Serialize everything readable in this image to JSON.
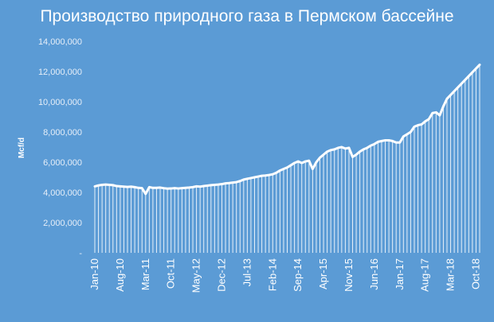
{
  "chart_data": {
    "type": "area",
    "title": "Производство природного газа в Пермском бассейне",
    "xlabel": "",
    "ylabel": "Mcf/d",
    "ylim": [
      0,
      14000000
    ],
    "yticks": [
      {
        "value": 0,
        "label": "-"
      },
      {
        "value": 2000000,
        "label": "2,000,000"
      },
      {
        "value": 4000000,
        "label": "4,000,000"
      },
      {
        "value": 6000000,
        "label": "6,000,000"
      },
      {
        "value": 8000000,
        "label": "8,000,000"
      },
      {
        "value": 10000000,
        "label": "10,000,000"
      },
      {
        "value": 12000000,
        "label": "12,000,000"
      },
      {
        "value": 14000000,
        "label": "14,000,000"
      }
    ],
    "xticks": [
      {
        "index": 0,
        "label": "Jan-10"
      },
      {
        "index": 7,
        "label": "Aug-10"
      },
      {
        "index": 14,
        "label": "Mar-11"
      },
      {
        "index": 21,
        "label": "Oct-11"
      },
      {
        "index": 28,
        "label": "May-12"
      },
      {
        "index": 35,
        "label": "Dec-12"
      },
      {
        "index": 42,
        "label": "Jul-13"
      },
      {
        "index": 49,
        "label": "Feb-14"
      },
      {
        "index": 56,
        "label": "Sep-14"
      },
      {
        "index": 63,
        "label": "Apr-15"
      },
      {
        "index": 70,
        "label": "Nov-15"
      },
      {
        "index": 77,
        "label": "Jun-16"
      },
      {
        "index": 84,
        "label": "Jan-17"
      },
      {
        "index": 91,
        "label": "Aug-17"
      },
      {
        "index": 98,
        "label": "Mar-18"
      },
      {
        "index": 105,
        "label": "Oct-18"
      }
    ],
    "series": [
      {
        "values": [
          4400000,
          4460000,
          4500000,
          4520000,
          4500000,
          4480000,
          4420000,
          4400000,
          4380000,
          4360000,
          4380000,
          4350000,
          4300000,
          4280000,
          3900000,
          4350000,
          4300000,
          4300000,
          4320000,
          4280000,
          4250000,
          4260000,
          4280000,
          4260000,
          4280000,
          4300000,
          4320000,
          4350000,
          4400000,
          4380000,
          4420000,
          4450000,
          4480000,
          4500000,
          4520000,
          4550000,
          4600000,
          4620000,
          4650000,
          4680000,
          4750000,
          4850000,
          4900000,
          4950000,
          5000000,
          5050000,
          5100000,
          5120000,
          5150000,
          5200000,
          5300000,
          5450000,
          5550000,
          5650000,
          5800000,
          5950000,
          6050000,
          5950000,
          6050000,
          6100000,
          5550000,
          6000000,
          6300000,
          6500000,
          6700000,
          6800000,
          6850000,
          6950000,
          7000000,
          6900000,
          6950000,
          6350000,
          6500000,
          6700000,
          6850000,
          6950000,
          7100000,
          7200000,
          7350000,
          7400000,
          7450000,
          7450000,
          7400000,
          7300000,
          7300000,
          7700000,
          7850000,
          8000000,
          8350000,
          8450000,
          8500000,
          8700000,
          8850000,
          9250000,
          9300000,
          9100000,
          9700000,
          10200000,
          10450000,
          10700000,
          10950000,
          11200000,
          11450000,
          11700000,
          11950000,
          12200000,
          12450000
        ]
      }
    ],
    "colors": {
      "background": "#5b9bd5",
      "line": "#ffffff",
      "text": "#ffffff",
      "tick_text": "#e6eef8"
    }
  }
}
